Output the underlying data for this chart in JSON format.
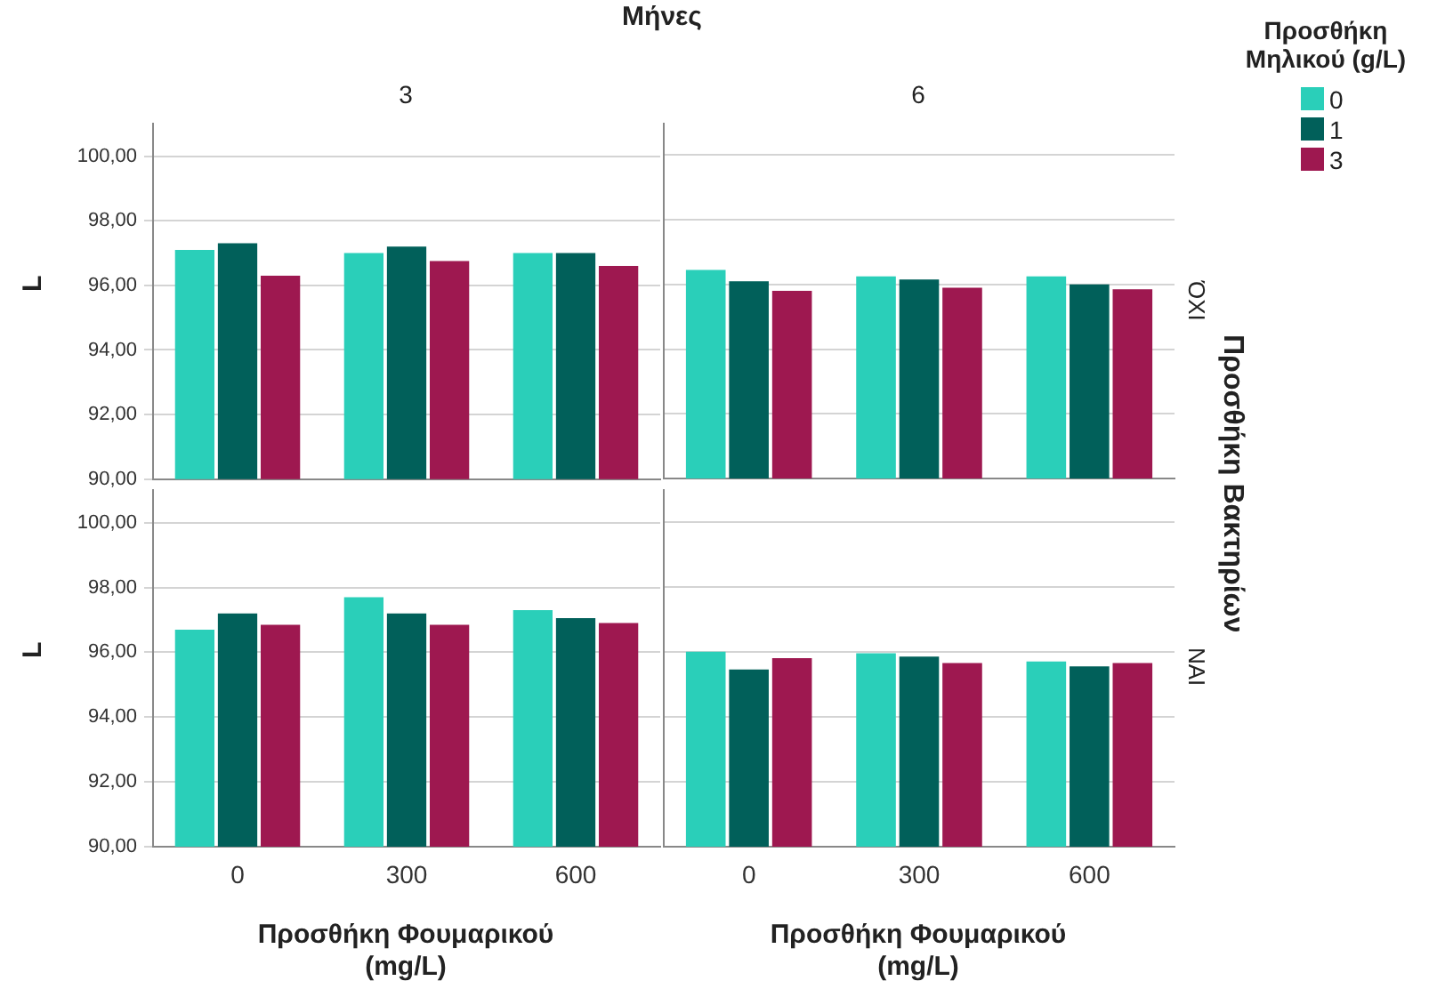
{
  "chart_data": [
    {
      "type": "bar",
      "title": "3",
      "ylabel": "L",
      "annotations": [
        "Μήνες"
      ],
      "categories": [
        "0",
        "300",
        "600"
      ],
      "series": [
        {
          "color": "#2acfb9",
          "values": [
            97.1,
            97.0,
            97.0
          ]
        },
        {
          "color": "#01605a",
          "values": [
            97.3,
            97.2,
            97.0
          ]
        },
        {
          "color": "#9e1850",
          "values": [
            96.3,
            96.75,
            96.6
          ]
        }
      ],
      "ylim": [
        90,
        101
      ],
      "yticks": [
        {
          "value": 90,
          "label": "90,00"
        },
        {
          "value": 92,
          "label": "92,00"
        },
        {
          "value": 94,
          "label": "94,00"
        },
        {
          "value": 96,
          "label": "96,00"
        },
        {
          "value": 98,
          "label": "98,00"
        },
        {
          "value": 100,
          "label": "100,00"
        }
      ],
      "grid": "y",
      "tick_labels": "y"
    },
    {
      "type": "bar",
      "title": "6",
      "y2label": "ΌΧΙ",
      "annotations": [
        "Προσθήκη Βακτηρίων"
      ],
      "legend_title": "Προσθήκη Μηλικού (g/L)",
      "legend": "top right",
      "categories": [
        "0",
        "300",
        "600"
      ],
      "series": [
        {
          "name": "0",
          "color": "#2acfb9",
          "values": [
            96.45,
            96.25,
            96.25
          ]
        },
        {
          "name": "1",
          "color": "#01605a",
          "values": [
            96.1,
            96.15,
            96.0
          ]
        },
        {
          "name": "3",
          "color": "#9e1850",
          "values": [
            95.8,
            95.9,
            95.85
          ]
        }
      ],
      "ylim": [
        90,
        101
      ],
      "yticks": [
        {
          "value": 90,
          "label": null
        },
        {
          "value": 92,
          "label": null
        },
        {
          "value": 94,
          "label": null
        },
        {
          "value": 96,
          "label": null
        },
        {
          "value": 98,
          "label": null
        },
        {
          "value": 100,
          "label": null
        }
      ],
      "grid": "y",
      "tick_labels": false
    },
    {
      "type": "bar",
      "ylabel": "L",
      "xlabel": "Προσθήκη Φουμαρικού (mg/L)",
      "categories": [
        "0",
        "300",
        "600"
      ],
      "series": [
        {
          "color": "#2acfb9",
          "values": [
            96.7,
            97.7,
            97.3
          ]
        },
        {
          "color": "#01605a",
          "values": [
            97.2,
            97.2,
            97.05
          ]
        },
        {
          "color": "#9e1850",
          "values": [
            96.85,
            96.85,
            96.9
          ]
        }
      ],
      "ylim": [
        90,
        101
      ],
      "yticks": [
        {
          "value": 90,
          "label": "90,00"
        },
        {
          "value": 92,
          "label": "92,00"
        },
        {
          "value": 94,
          "label": "94,00"
        },
        {
          "value": 96,
          "label": "96,00"
        },
        {
          "value": 98,
          "label": "98,00"
        },
        {
          "value": 100,
          "label": "100,00"
        }
      ],
      "grid": "y"
    },
    {
      "type": "bar",
      "y2label": "ΝΑΙ",
      "xlabel": "Προσθήκη Φουμαρικού (mg/L)",
      "categories": [
        "0",
        "300",
        "600"
      ],
      "series": [
        {
          "color": "#2acfb9",
          "values": [
            96.0,
            95.95,
            95.7
          ]
        },
        {
          "color": "#01605a",
          "values": [
            95.45,
            95.85,
            95.55
          ]
        },
        {
          "color": "#9e1850",
          "values": [
            95.8,
            95.65,
            95.65
          ]
        }
      ],
      "ylim": [
        90,
        101
      ],
      "yticks": [
        {
          "value": 90,
          "label": null
        },
        {
          "value": 92,
          "label": null
        },
        {
          "value": 94,
          "label": null
        },
        {
          "value": 96,
          "label": null
        },
        {
          "value": 98,
          "label": null
        },
        {
          "value": 100,
          "label": null
        }
      ],
      "grid": "y",
      "tick_labels": "x"
    }
  ]
}
